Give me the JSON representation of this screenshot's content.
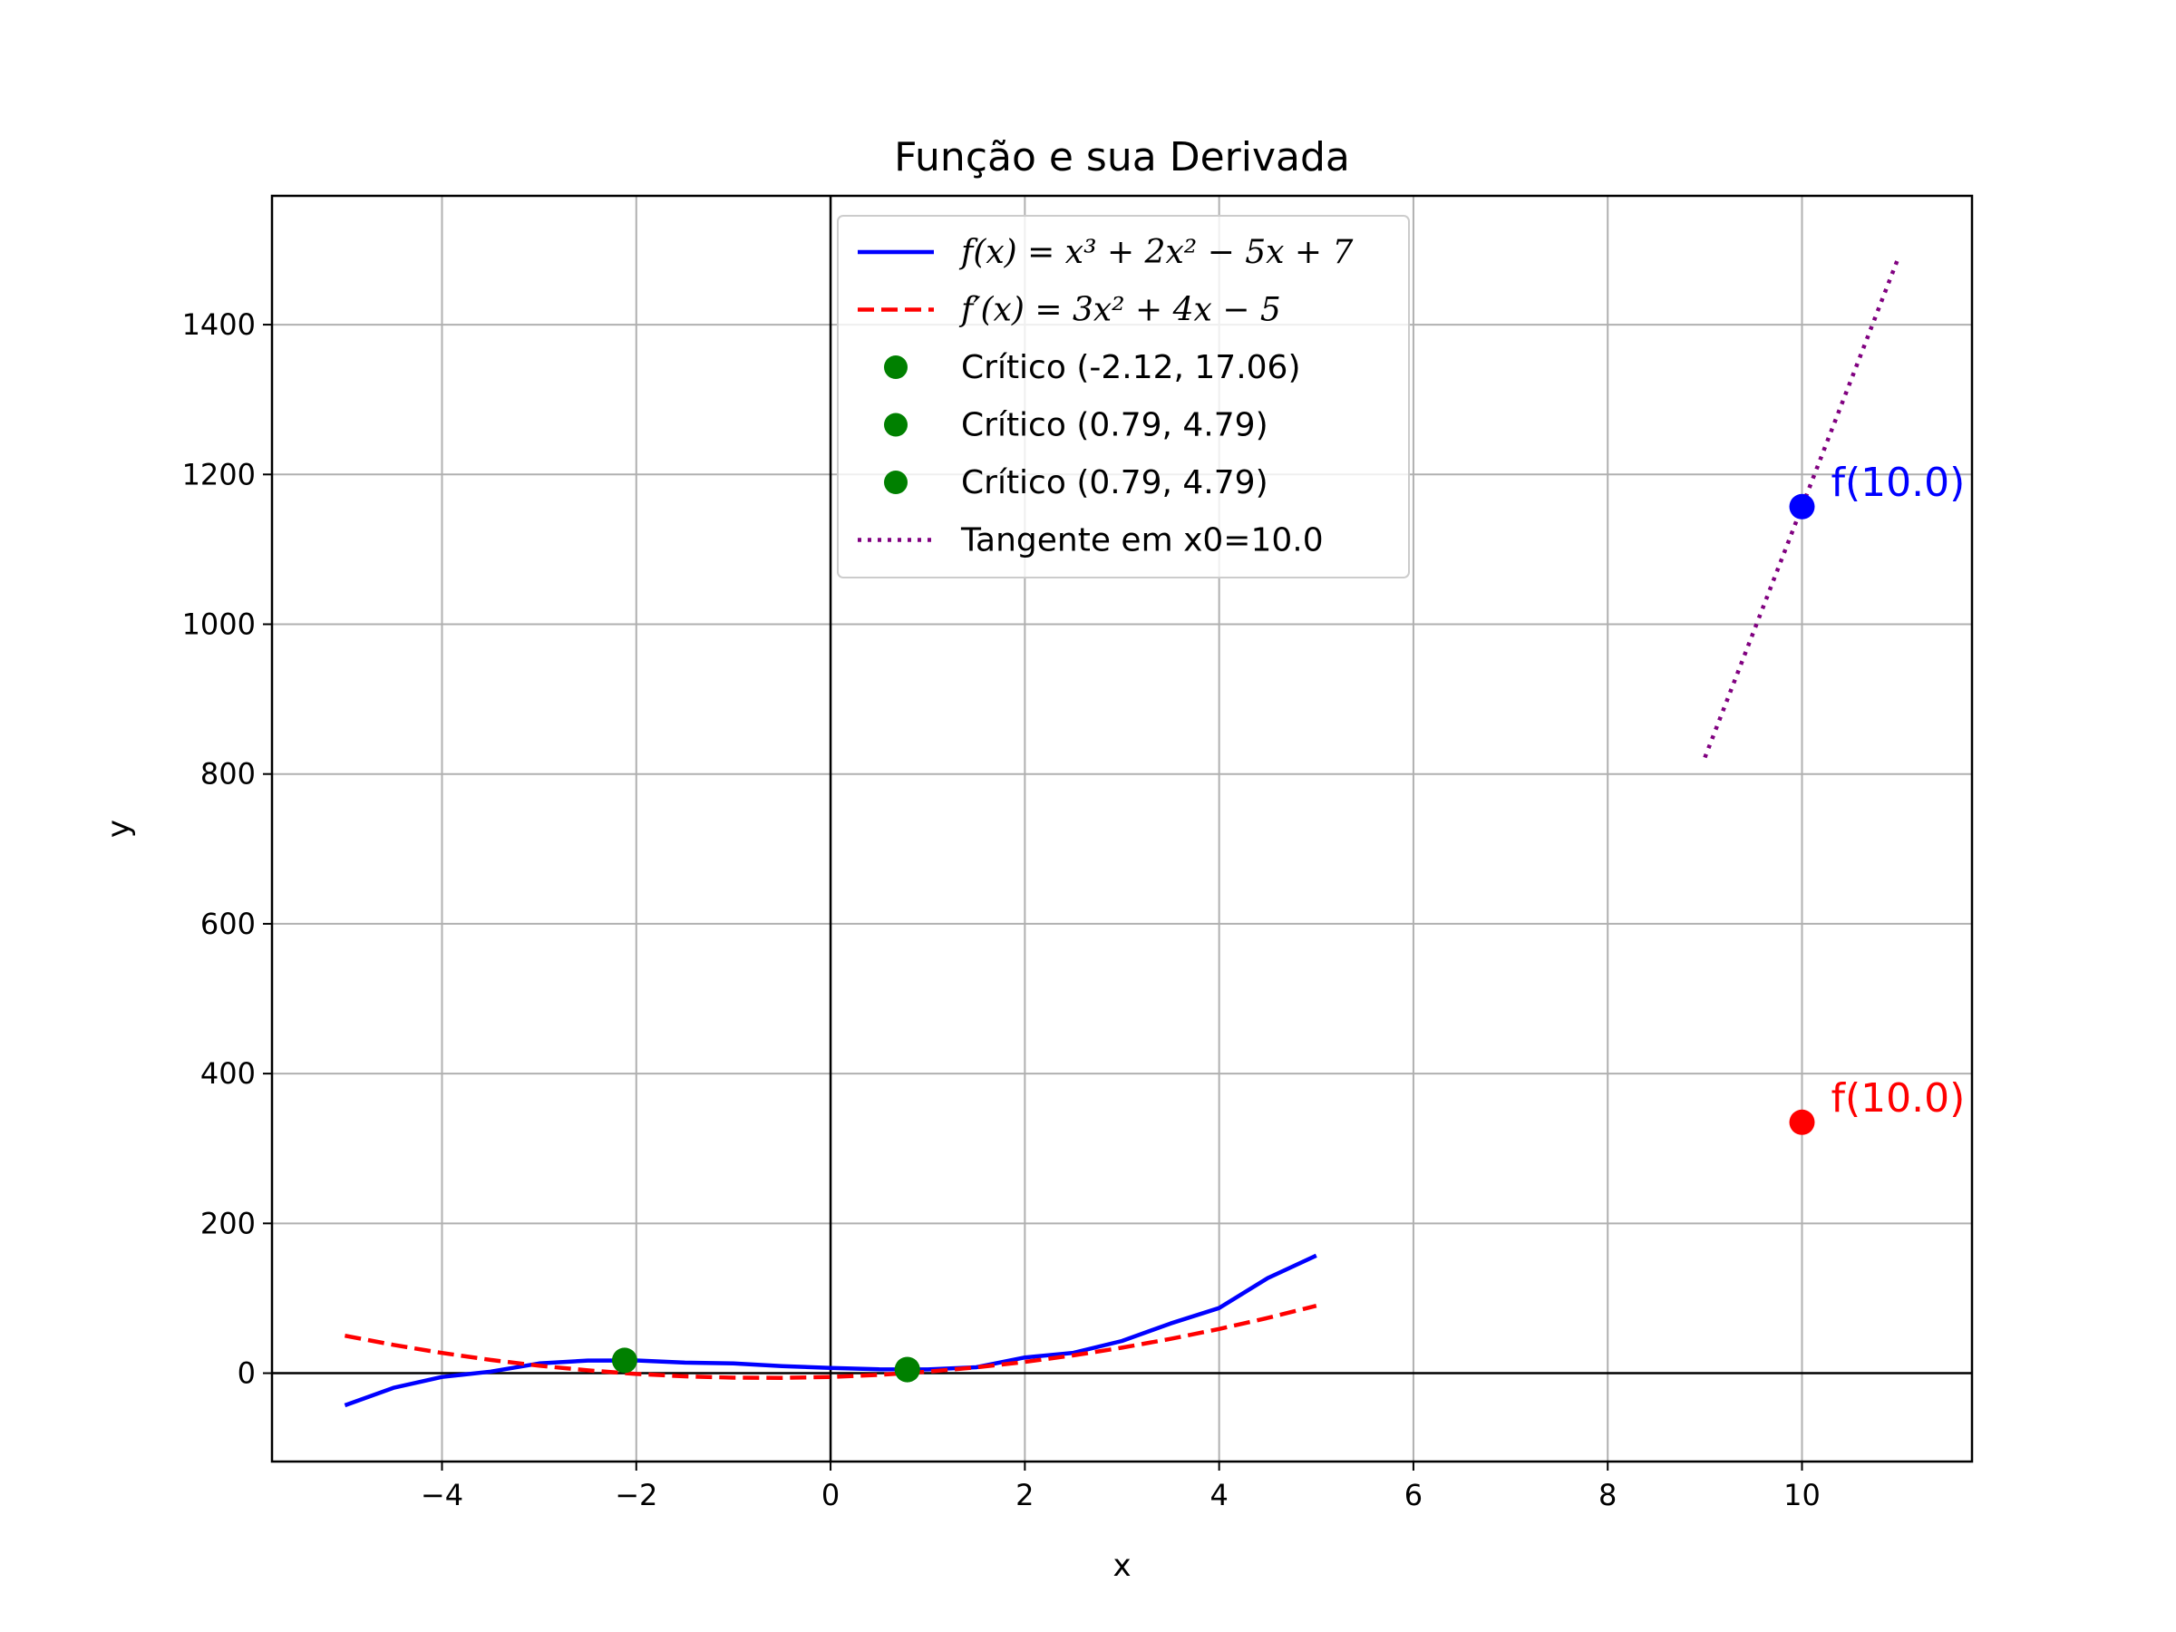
{
  "chart_data": {
    "type": "line",
    "title": "Função e sua Derivada",
    "xlabel": "x",
    "ylabel": "y",
    "xlim": [
      -5.75,
      11.75
    ],
    "ylim": [
      -118,
      1572
    ],
    "xticks": [
      -4,
      -2,
      0,
      2,
      4,
      6,
      8,
      10
    ],
    "xtick_labels": [
      "−4",
      "−2",
      "0",
      "2",
      "4",
      "6",
      "8",
      "10"
    ],
    "yticks": [
      0,
      200,
      400,
      600,
      800,
      1000,
      1200,
      1400
    ],
    "ytick_labels": [
      "0",
      "200",
      "400",
      "600",
      "800",
      "1000",
      "1200",
      "1400"
    ],
    "grid": true,
    "legend_position": "top-center",
    "series": [
      {
        "name": "f(x) = x³ + 2x² − 5x + 7",
        "style": "solid",
        "color": "#0000ff",
        "x": [
          -5,
          -4.5,
          -4,
          -3.5,
          -3,
          -2.5,
          -2,
          -1.5,
          -1,
          -0.5,
          0,
          0.5,
          1,
          1.5,
          2,
          2.5,
          3,
          3.5,
          4,
          4.5,
          5
        ],
        "y": [
          -43,
          -19.625,
          -5,
          2.125,
          13,
          16.875,
          17,
          14.125,
          13,
          9.375,
          7,
          5.125,
          5,
          7.875,
          21,
          27.125,
          43,
          66.375,
          87,
          126.875,
          157
        ]
      },
      {
        "name": "f′(x) = 3x² + 4x − 5",
        "style": "dashed",
        "color": "#ff0000",
        "x": [
          -5,
          -4.5,
          -4,
          -3.5,
          -3,
          -2.5,
          -2,
          -1.5,
          -1,
          -0.5,
          0,
          0.5,
          1,
          1.5,
          2,
          2.5,
          3,
          3.5,
          4,
          4.5,
          5
        ],
        "y": [
          50,
          37.75,
          27,
          17.75,
          10,
          3.75,
          -1,
          -4.25,
          -6,
          -6.25,
          -5,
          -2.25,
          2,
          7.75,
          15,
          23.75,
          34,
          45.75,
          59,
          73.75,
          90
        ]
      },
      {
        "name": "Tangente em x0=10.0",
        "style": "dotted",
        "color": "#800080",
        "x": [
          9,
          11
        ],
        "y": [
          822,
          1492
        ]
      }
    ],
    "points": [
      {
        "name": "Crítico (-2.12, 17.06)",
        "x": -2.12,
        "y": 17.06,
        "color": "#008000",
        "in_legend": true
      },
      {
        "name": "Crítico (0.79, 4.79)",
        "x": 0.79,
        "y": 4.79,
        "color": "#008000",
        "in_legend": true
      },
      {
        "name": "Crítico (0.79, 4.79)",
        "x": 0.79,
        "y": 4.79,
        "color": "#008000",
        "in_legend": true
      },
      {
        "name": "",
        "x": 10,
        "y": 1157,
        "color": "#0000ff",
        "in_legend": false
      },
      {
        "name": "",
        "x": 10,
        "y": 335,
        "color": "#ff0000",
        "in_legend": false
      }
    ],
    "annotations": [
      {
        "text": "f(10.0)",
        "x": 10,
        "y": 1157,
        "color": "#0000ff"
      },
      {
        "text": "f(10.0)",
        "x": 10,
        "y": 335,
        "color": "#ff0000"
      }
    ],
    "legend": [
      {
        "kind": "line",
        "style": "solid",
        "color": "#0000ff",
        "math": true,
        "label": "f(x) = x³ + 2x² − 5x + 7"
      },
      {
        "kind": "line",
        "style": "dashed",
        "color": "#ff0000",
        "math": true,
        "label": "f′(x) = 3x² + 4x − 5"
      },
      {
        "kind": "marker",
        "color": "#008000",
        "math": false,
        "label": "Crítico (-2.12, 17.06)"
      },
      {
        "kind": "marker",
        "color": "#008000",
        "math": false,
        "label": "Crítico (0.79, 4.79)"
      },
      {
        "kind": "marker",
        "color": "#008000",
        "math": false,
        "label": "Crítico (0.79, 4.79)"
      },
      {
        "kind": "line",
        "style": "dotted",
        "color": "#800080",
        "math": false,
        "label": "Tangente em x0=10.0"
      }
    ]
  }
}
